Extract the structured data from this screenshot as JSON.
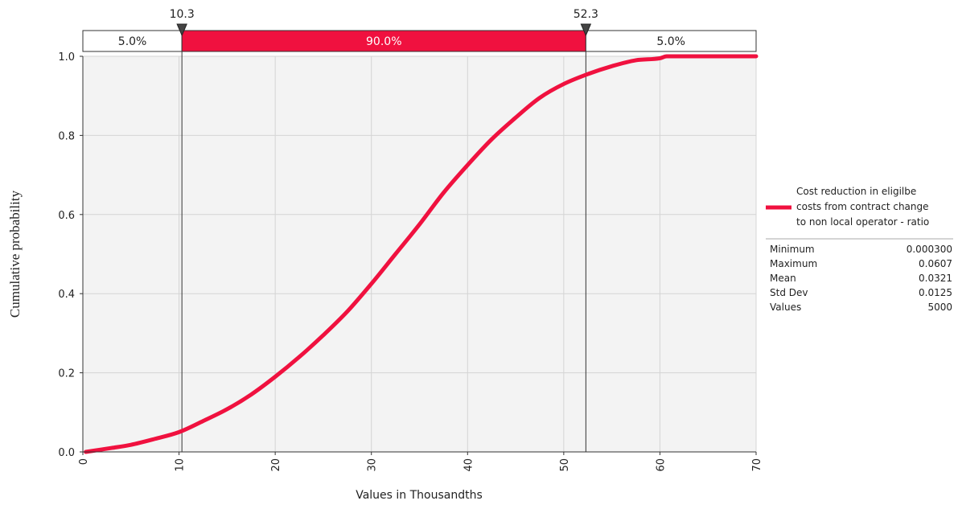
{
  "chart_data": {
    "type": "line",
    "xlabel": "Values in Thousandths",
    "ylabel": "Cumulative probability",
    "xlim": [
      0,
      70
    ],
    "ylim": [
      0,
      1
    ],
    "x_ticks": [
      0,
      10,
      20,
      30,
      40,
      50,
      60,
      70
    ],
    "y_ticks": [
      "0.0",
      "0.2",
      "0.4",
      "0.6",
      "0.8",
      "1.0"
    ],
    "grid": true,
    "legend_position": "right",
    "series": [
      {
        "name": "Cost reduction in eligilbe costs from contract change to non local operator - ratio",
        "color": "#f0113f",
        "x": [
          0.3,
          3,
          5,
          7.5,
          10,
          12.5,
          15,
          17.5,
          20,
          22.5,
          25,
          27.5,
          30,
          32.5,
          35,
          37.5,
          40,
          42.5,
          45,
          47.5,
          50,
          52.5,
          55,
          57.5,
          60,
          60.7,
          70
        ],
        "y": [
          0.0,
          0.01,
          0.018,
          0.033,
          0.05,
          0.078,
          0.108,
          0.145,
          0.19,
          0.24,
          0.295,
          0.355,
          0.425,
          0.5,
          0.575,
          0.655,
          0.725,
          0.79,
          0.845,
          0.895,
          0.93,
          0.955,
          0.975,
          0.99,
          0.995,
          1.0,
          1.0
        ]
      }
    ],
    "delimiters": [
      {
        "value": 10.3,
        "label": "10.3"
      },
      {
        "value": 52.3,
        "label": "52.3"
      }
    ],
    "bands": [
      {
        "label": "5.0%",
        "color": "#ffffff",
        "text_color": "#222222"
      },
      {
        "label": "90.0%",
        "color": "#f0113f",
        "text_color": "#ffffff"
      },
      {
        "label": "5.0%",
        "color": "#ffffff",
        "text_color": "#222222"
      }
    ]
  },
  "legend": {
    "lines": [
      "Cost reduction in eligilbe",
      "costs from contract change",
      "to non local operator - ratio"
    ]
  },
  "stats": [
    {
      "label": "Minimum",
      "value": "0.000300"
    },
    {
      "label": "Maximum",
      "value": "0.0607"
    },
    {
      "label": "Mean",
      "value": "0.0321"
    },
    {
      "label": "Std Dev",
      "value": "0.0125"
    },
    {
      "label": "Values",
      "value": "5000"
    }
  ]
}
